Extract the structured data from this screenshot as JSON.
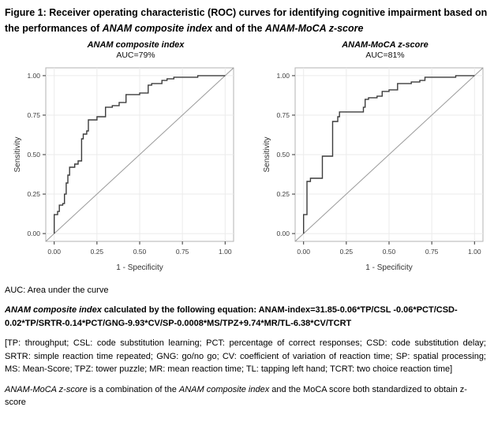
{
  "figure": {
    "title_segments": [
      {
        "text": "Figure 1: Receiver operating characteristic (ROC) curves for identifying cognitive impairment based on the performances of ",
        "style": "bold"
      },
      {
        "text": "ANAM composite index",
        "style": "bold-italic"
      },
      {
        "text": " and of the ",
        "style": "bold"
      },
      {
        "text": "ANAM-MoCA z-score",
        "style": "bold-italic"
      }
    ]
  },
  "chart_data": [
    {
      "type": "line",
      "title": "ANAM composite index",
      "subtitle": "AUC=79%",
      "auc_percent": 79,
      "xlabel": "1 - Specificity",
      "ylabel": "Sensitivity",
      "xlim": [
        0,
        1
      ],
      "ylim": [
        0,
        1
      ],
      "xticks": [
        "0.00",
        "0.25",
        "0.50",
        "0.75",
        "1.00"
      ],
      "yticks": [
        "0.00",
        "0.25",
        "0.50",
        "0.75",
        "1.00"
      ],
      "grid": true,
      "reference_diagonal": true,
      "legend": "none",
      "series": [
        {
          "name": "ROC curve",
          "step_points": [
            [
              0.0,
              0.0
            ],
            [
              0.0,
              0.12
            ],
            [
              0.02,
              0.12
            ],
            [
              0.02,
              0.14
            ],
            [
              0.03,
              0.14
            ],
            [
              0.03,
              0.18
            ],
            [
              0.05,
              0.18
            ],
            [
              0.05,
              0.19
            ],
            [
              0.06,
              0.19
            ],
            [
              0.06,
              0.25
            ],
            [
              0.07,
              0.25
            ],
            [
              0.07,
              0.32
            ],
            [
              0.08,
              0.32
            ],
            [
              0.08,
              0.37
            ],
            [
              0.09,
              0.37
            ],
            [
              0.09,
              0.42
            ],
            [
              0.12,
              0.42
            ],
            [
              0.12,
              0.44
            ],
            [
              0.14,
              0.44
            ],
            [
              0.14,
              0.46
            ],
            [
              0.16,
              0.46
            ],
            [
              0.16,
              0.6
            ],
            [
              0.17,
              0.6
            ],
            [
              0.17,
              0.63
            ],
            [
              0.19,
              0.63
            ],
            [
              0.19,
              0.65
            ],
            [
              0.2,
              0.65
            ],
            [
              0.2,
              0.72
            ],
            [
              0.25,
              0.72
            ],
            [
              0.25,
              0.74
            ],
            [
              0.3,
              0.74
            ],
            [
              0.3,
              0.8
            ],
            [
              0.34,
              0.8
            ],
            [
              0.34,
              0.81
            ],
            [
              0.38,
              0.81
            ],
            [
              0.38,
              0.83
            ],
            [
              0.42,
              0.83
            ],
            [
              0.42,
              0.88
            ],
            [
              0.5,
              0.88
            ],
            [
              0.5,
              0.89
            ],
            [
              0.55,
              0.89
            ],
            [
              0.55,
              0.94
            ],
            [
              0.57,
              0.94
            ],
            [
              0.57,
              0.95
            ],
            [
              0.63,
              0.95
            ],
            [
              0.63,
              0.97
            ],
            [
              0.66,
              0.97
            ],
            [
              0.66,
              0.98
            ],
            [
              0.7,
              0.98
            ],
            [
              0.7,
              0.99
            ],
            [
              0.84,
              0.99
            ],
            [
              0.84,
              1.0
            ],
            [
              1.0,
              1.0
            ]
          ]
        }
      ]
    },
    {
      "type": "line",
      "title": "ANAM-MoCA z-score",
      "subtitle": "AUC=81%",
      "auc_percent": 81,
      "xlabel": "1 - Specificity",
      "ylabel": "Sensitivity",
      "xlim": [
        0,
        1
      ],
      "ylim": [
        0,
        1
      ],
      "xticks": [
        "0.00",
        "0.25",
        "0.50",
        "0.75",
        "1.00"
      ],
      "yticks": [
        "0.00",
        "0.25",
        "0.50",
        "0.75",
        "1.00"
      ],
      "grid": true,
      "reference_diagonal": true,
      "legend": "none",
      "series": [
        {
          "name": "ROC curve",
          "step_points": [
            [
              0.0,
              0.0
            ],
            [
              0.0,
              0.12
            ],
            [
              0.02,
              0.12
            ],
            [
              0.02,
              0.33
            ],
            [
              0.04,
              0.33
            ],
            [
              0.04,
              0.35
            ],
            [
              0.11,
              0.35
            ],
            [
              0.11,
              0.49
            ],
            [
              0.17,
              0.49
            ],
            [
              0.17,
              0.71
            ],
            [
              0.2,
              0.71
            ],
            [
              0.2,
              0.74
            ],
            [
              0.21,
              0.74
            ],
            [
              0.21,
              0.77
            ],
            [
              0.35,
              0.77
            ],
            [
              0.35,
              0.8
            ],
            [
              0.36,
              0.8
            ],
            [
              0.36,
              0.85
            ],
            [
              0.38,
              0.85
            ],
            [
              0.38,
              0.86
            ],
            [
              0.43,
              0.86
            ],
            [
              0.43,
              0.87
            ],
            [
              0.46,
              0.87
            ],
            [
              0.46,
              0.9
            ],
            [
              0.5,
              0.9
            ],
            [
              0.5,
              0.91
            ],
            [
              0.55,
              0.91
            ],
            [
              0.55,
              0.95
            ],
            [
              0.63,
              0.95
            ],
            [
              0.63,
              0.96
            ],
            [
              0.68,
              0.96
            ],
            [
              0.68,
              0.97
            ],
            [
              0.71,
              0.97
            ],
            [
              0.71,
              0.99
            ],
            [
              0.89,
              0.99
            ],
            [
              0.89,
              1.0
            ],
            [
              1.0,
              1.0
            ]
          ]
        }
      ]
    }
  ],
  "footer": {
    "auc_note": "AUC: Area under the curve",
    "equation_segments": [
      {
        "text": "ANAM composite index",
        "style": "bold-italic"
      },
      {
        "text": " calculated by the following equation: ANAM-index=31.85-0.06*TP/CSL -0.06*PCT/CSD-0.02*TP/SRTR-0.14*PCT/GNG-9.93*CV/SP-0.0008*MS/TPZ+9.74*MR/TL-6.38*CV/TCRT",
        "style": "bold"
      }
    ],
    "abbreviations": "[TP: throughput; CSL: code substitution learning; PCT: percentage of correct responses; CSD: code substitution delay; SRTR: simple reaction time repeated; GNG: go/no go; CV: coefficient of variation of reaction time; SP: spatial processing; MS: Mean-Score; TPZ: tower puzzle; MR: mean reaction time; TL: tapping left hand;  TCRT: two choice reaction time]",
    "zscore_segments": [
      {
        "text": "ANAM-MoCA z-score",
        "style": "italic"
      },
      {
        "text": " is a combination of the ",
        "style": "regular"
      },
      {
        "text": "ANAM composite index",
        "style": "italic"
      },
      {
        "text": " and the MoCA score both standardized to obtain z-score",
        "style": "regular"
      }
    ]
  },
  "colors": {
    "roc_curve": "#3c3c3c",
    "reference_line": "#9a9a9a",
    "panel_border": "#b3b3b3",
    "gridline": "#ebebeb",
    "text": "#000000"
  }
}
